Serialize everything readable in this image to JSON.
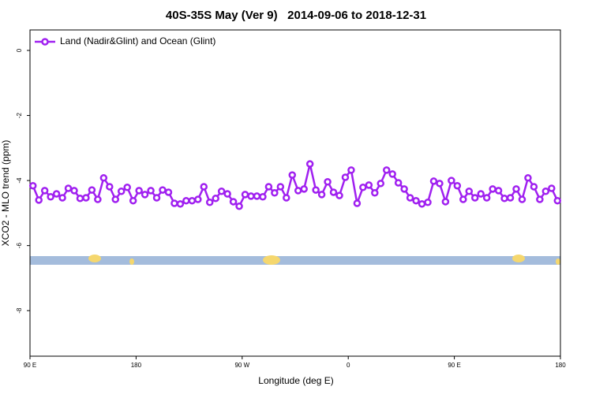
{
  "chart_data": {
    "type": "line",
    "title": "40S-35S May (Ver 9)   2014-09-06 to 2018-12-31",
    "x_label": "Longitude (deg E)",
    "y_label": "XCO2 - MLO trend (ppm)",
    "xlim": [
      90,
      540
    ],
    "ylim": [
      -9.4,
      0.63
    ],
    "xticks": [
      {
        "value": 90,
        "label": "90 E"
      },
      180,
      {
        "value": 270,
        "label": "90 W"
      },
      {
        "value": 360,
        "label": "0"
      },
      {
        "value": 450,
        "label": "90 E"
      },
      {
        "value": 540,
        "label": "180"
      }
    ],
    "yticks": [
      -8,
      -6,
      -4,
      -2,
      0
    ],
    "legend": "top-left",
    "series": [
      {
        "name": "Land (Nadir&Glint) and Ocean (Glint)",
        "color": "#a020f0",
        "x": [
          92.5,
          97.5,
          102.5,
          107.5,
          112.5,
          117.5,
          122.5,
          127.5,
          132.5,
          137.5,
          142.5,
          147.5,
          152.5,
          157.5,
          162.5,
          167.5,
          172.5,
          177.5,
          182.5,
          187.5,
          192.5,
          197.5,
          202.5,
          207.5,
          212.5,
          217.5,
          222.5,
          227.5,
          232.5,
          237.5,
          242.5,
          247.5,
          252.5,
          257.5,
          262.5,
          267.5,
          272.5,
          277.5,
          282.5,
          287.5,
          292.5,
          297.5,
          302.5,
          307.5,
          312.5,
          317.5,
          322.5,
          327.5,
          332.5,
          337.5,
          342.5,
          347.5,
          352.5,
          357.5,
          362.5,
          367.5,
          372.5,
          377.5,
          382.5,
          387.5,
          392.5,
          397.5,
          402.5,
          407.5,
          412.5,
          417.5,
          422.5,
          427.5,
          432.5,
          437.5,
          442.5,
          447.5,
          452.5,
          457.5,
          462.5,
          467.5,
          472.5,
          477.5,
          482.5,
          487.5,
          492.5,
          497.5,
          502.5,
          507.5,
          512.5,
          517.5,
          522.5,
          527.5,
          532.5,
          537.5
        ],
        "values": [
          -4.16,
          -4.6,
          -4.31,
          -4.5,
          -4.41,
          -4.53,
          -4.24,
          -4.31,
          -4.55,
          -4.53,
          -4.29,
          -4.58,
          -3.92,
          -4.19,
          -4.58,
          -4.33,
          -4.21,
          -4.62,
          -4.31,
          -4.43,
          -4.31,
          -4.53,
          -4.29,
          -4.36,
          -4.7,
          -4.72,
          -4.62,
          -4.62,
          -4.58,
          -4.19,
          -4.67,
          -4.55,
          -4.33,
          -4.41,
          -4.65,
          -4.79,
          -4.43,
          -4.48,
          -4.48,
          -4.5,
          -4.19,
          -4.38,
          -4.19,
          -4.53,
          -3.83,
          -4.31,
          -4.26,
          -3.49,
          -4.29,
          -4.43,
          -4.04,
          -4.36,
          -4.46,
          -3.9,
          -3.68,
          -4.7,
          -4.21,
          -4.14,
          -4.38,
          -4.09,
          -3.68,
          -3.8,
          -4.07,
          -4.26,
          -4.53,
          -4.62,
          -4.72,
          -4.67,
          -4.02,
          -4.09,
          -4.65,
          -4.0,
          -4.16,
          -4.58,
          -4.33,
          -4.53,
          -4.41,
          -4.53,
          -4.26,
          -4.31,
          -4.55,
          -4.53,
          -4.26,
          -4.58,
          -3.92,
          -4.19,
          -4.58,
          -4.33,
          -4.24,
          -4.62
        ]
      }
    ]
  }
}
